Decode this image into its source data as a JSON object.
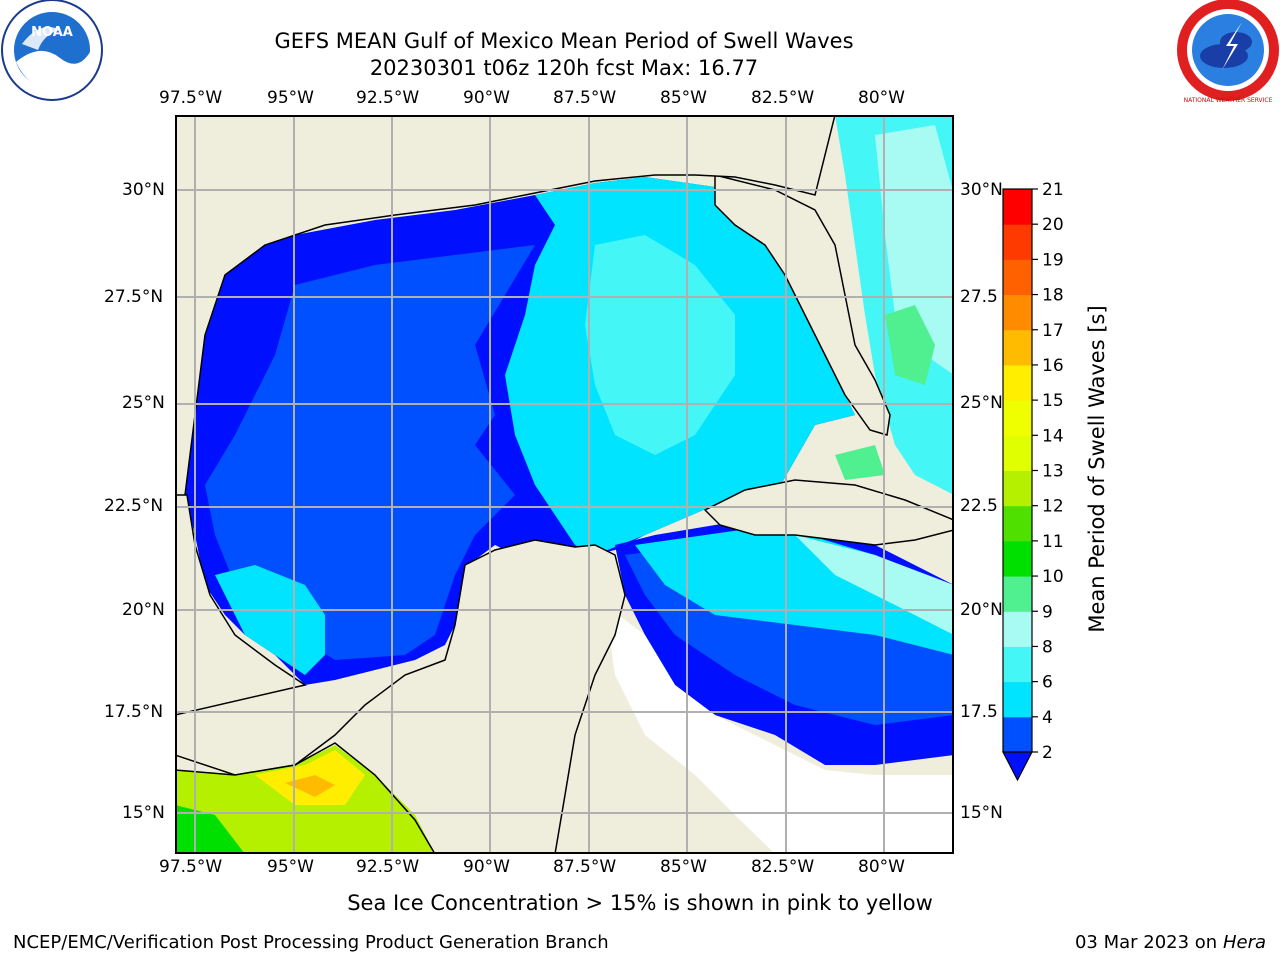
{
  "title": {
    "line1": "GEFS MEAN Gulf of Mexico Mean Period of Swell Waves",
    "line2": "20230301 t06z 120h fcst   Max: 16.77"
  },
  "map": {
    "lon_labels": [
      "97.5°W",
      "95°W",
      "92.5°W",
      "90°W",
      "87.5°W",
      "85°W",
      "82.5°W",
      "80°W"
    ],
    "lat_labels_left": [
      "30°N",
      "27.5°N",
      "25°N",
      "22.5°N",
      "20°N",
      "17.5°N",
      "15°N"
    ],
    "lat_labels_right": [
      "30°N",
      "27.5",
      "25°N",
      "22.5",
      "20°N",
      "17.5",
      "15°N"
    ],
    "colors": {
      "land": "#efeedc",
      "water_void": "#ffffff",
      "grid": "#b0b0b0"
    }
  },
  "colorbar": {
    "label": "Mean Period of Swell Waves [s]",
    "ticks": [
      "21",
      "20",
      "19",
      "18",
      "17",
      "16",
      "15",
      "14",
      "13",
      "12",
      "11",
      "10",
      "9",
      "8",
      "6",
      "4",
      "2"
    ],
    "bins": [
      {
        "from": 2,
        "to": 4,
        "color": "#0050ff"
      },
      {
        "from": 4,
        "to": 6,
        "color": "#00e4ff"
      },
      {
        "from": 6,
        "to": 8,
        "color": "#44f6f6"
      },
      {
        "from": 8,
        "to": 9,
        "color": "#a8fbf2"
      },
      {
        "from": 9,
        "to": 10,
        "color": "#50f090"
      },
      {
        "from": 10,
        "to": 11,
        "color": "#00e000"
      },
      {
        "from": 11,
        "to": 12,
        "color": "#50e000"
      },
      {
        "from": 12,
        "to": 13,
        "color": "#b4f000"
      },
      {
        "from": 13,
        "to": 14,
        "color": "#e0ff00"
      },
      {
        "from": 14,
        "to": 15,
        "color": "#f0ff00"
      },
      {
        "from": 15,
        "to": 16,
        "color": "#ffee00"
      },
      {
        "from": 16,
        "to": 17,
        "color": "#ffbb00"
      },
      {
        "from": 17,
        "to": 18,
        "color": "#ff8c00"
      },
      {
        "from": 18,
        "to": 19,
        "color": "#ff6000"
      },
      {
        "from": 19,
        "to": 20,
        "color": "#ff3a00"
      },
      {
        "from": 20,
        "to": 21,
        "color": "#ff0000"
      }
    ],
    "under_color": "#0010ff"
  },
  "footer": {
    "note": "Sea Ice Concentration > 15% is shown in pink to yellow",
    "credit": "NCEP/EMC/Verification Post Processing Product Generation Branch",
    "date": "03 Mar 2023 on",
    "machine": "Hera"
  },
  "logos": {
    "noaa": "NOAA",
    "nws_ring": "NATIONAL WEATHER SERVICE"
  }
}
